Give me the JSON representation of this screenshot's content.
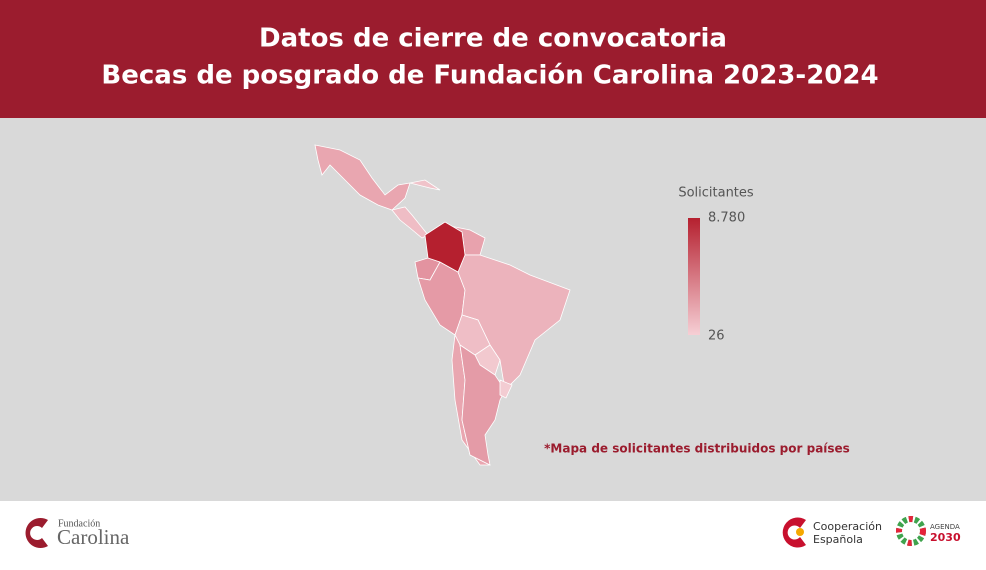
{
  "header": {
    "title_line1": "Datos de cierre de convocatoria",
    "title_line2": "Becas de posgrado de Fundación Carolina 2023-2024"
  },
  "legend": {
    "title": "Solicitantes",
    "max": {
      "value": 8780,
      "label": "8.780"
    },
    "min": 26,
    "color_high": "#b5202f",
    "color_low": "#f6cfd5"
  },
  "note": "*Mapa de solicitantes distribuidos por países",
  "footer": {
    "left_logo": {
      "line1": "Fundación",
      "line2": "Carolina"
    },
    "right_logo1": {
      "line1": "Cooperación",
      "line2": "Española"
    },
    "right_logo2": {
      "line1": "AGENDA",
      "line2": "2030"
    }
  }
}
